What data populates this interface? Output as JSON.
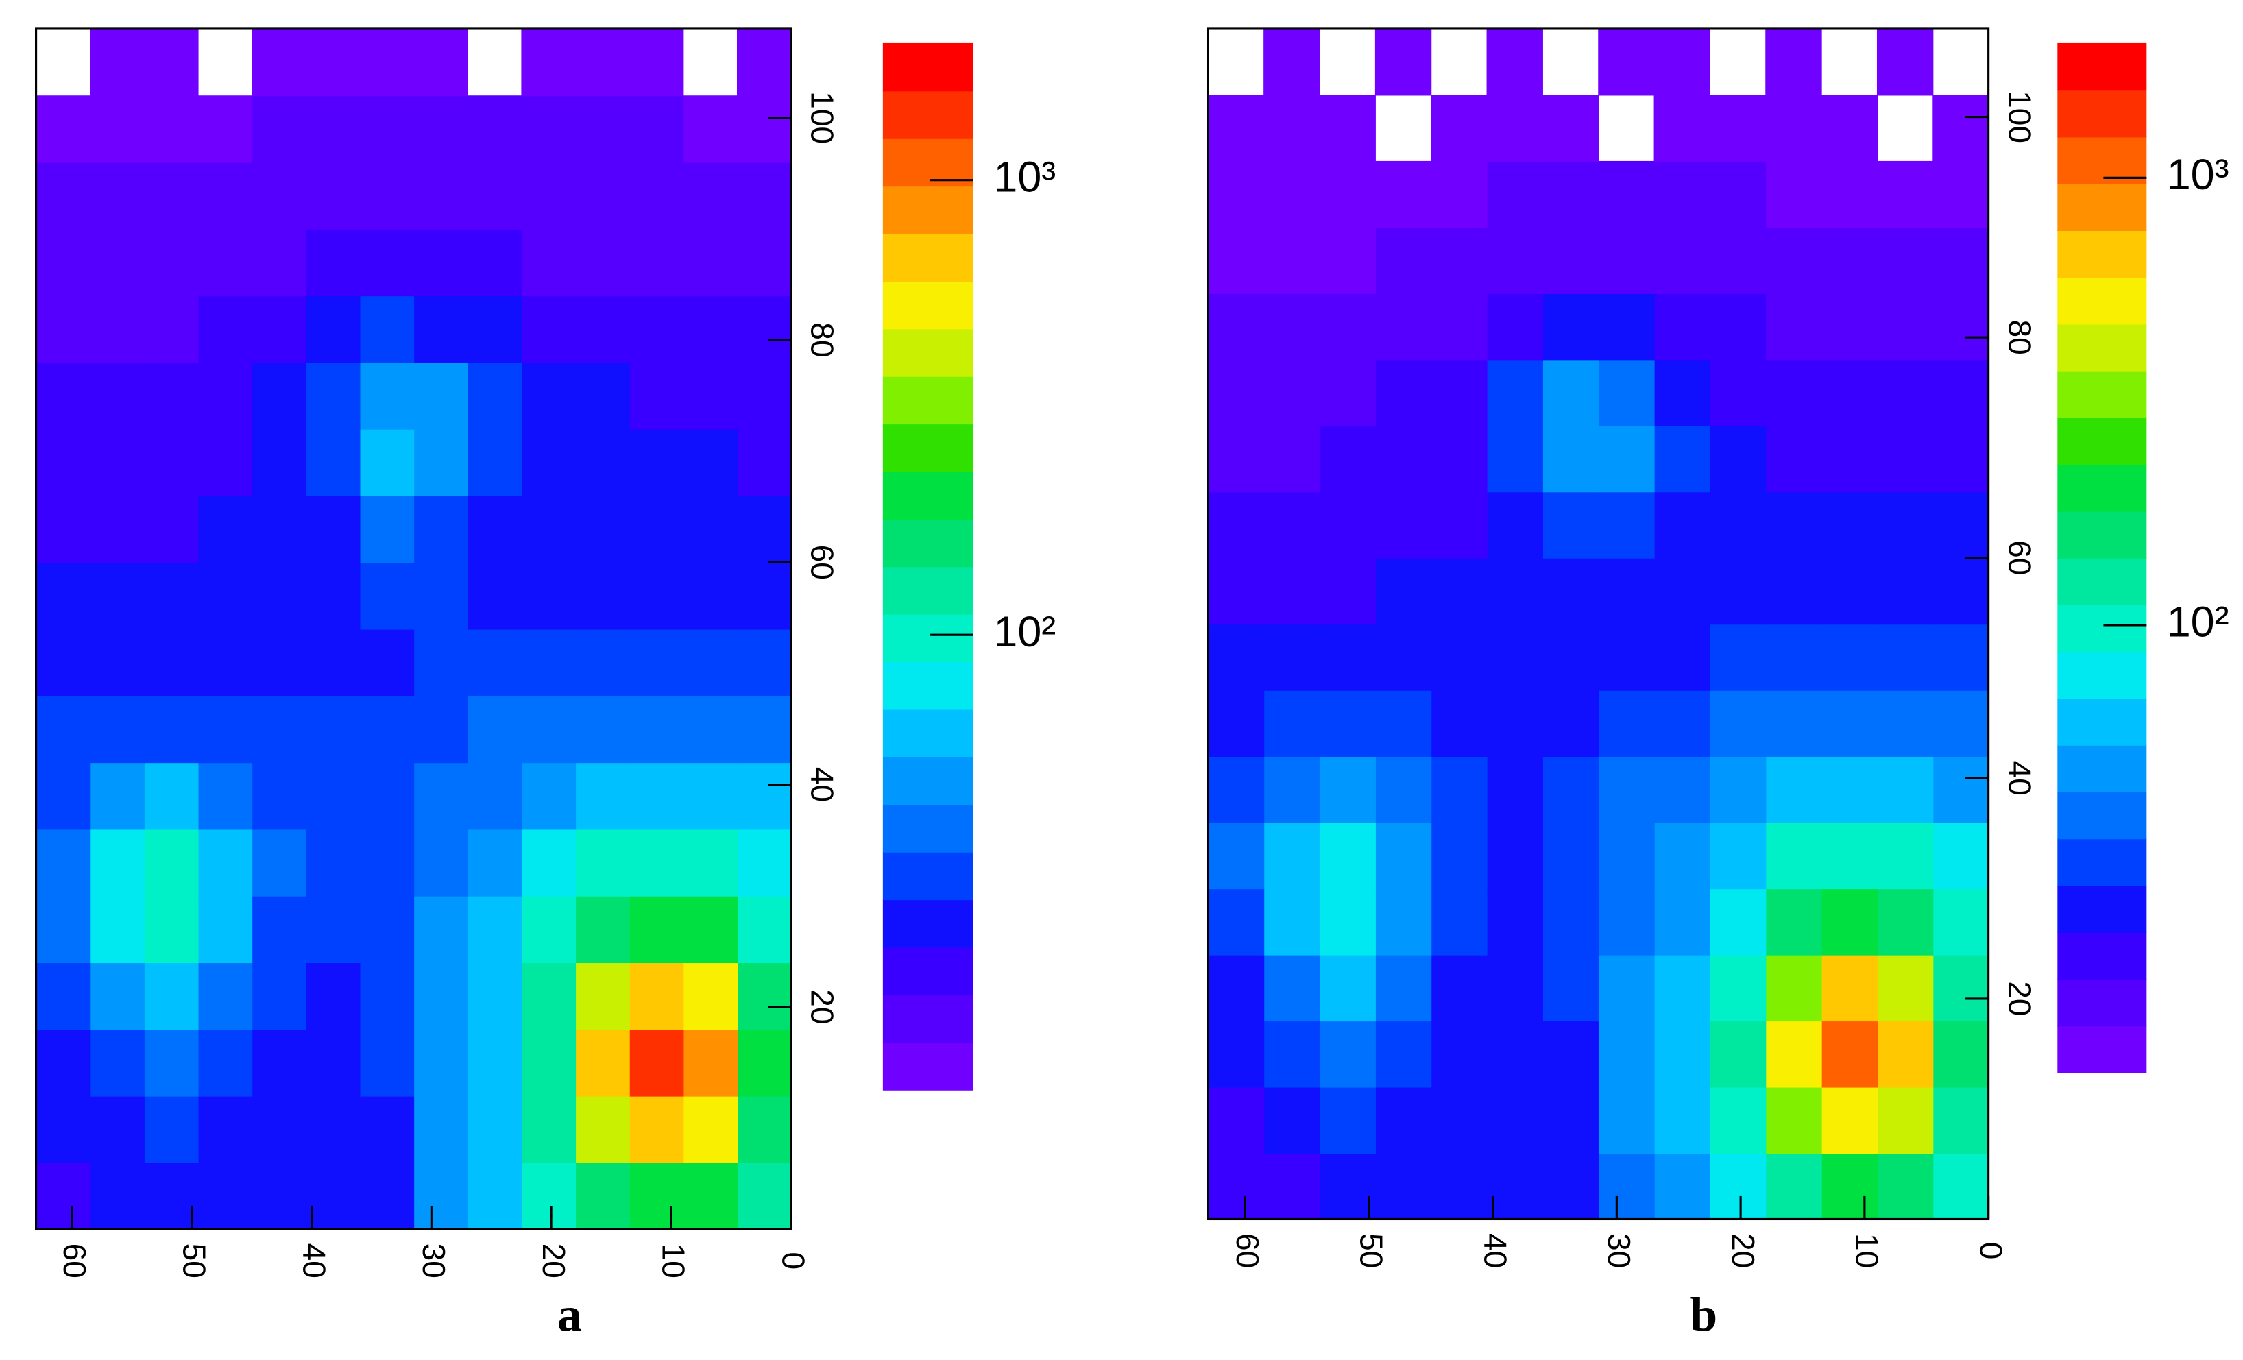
{
  "chart_data": [
    {
      "type": "heatmap",
      "label": "a",
      "x_bins": [
        0,
        4.5,
        9,
        13.5,
        18,
        22.5,
        27,
        31.5,
        36,
        40.5,
        45,
        49.5,
        54,
        58.5,
        63
      ],
      "y_bins": [
        0,
        6,
        12,
        18,
        24,
        30,
        36,
        42,
        48,
        54,
        60,
        66,
        72,
        78,
        84,
        90,
        96,
        102,
        108
      ],
      "z": [
        [
          120,
          180,
          200,
          150,
          90,
          55,
          45,
          25,
          22,
          22,
          22,
          24,
          22,
          20
        ],
        [
          170,
          500,
          700,
          380,
          120,
          60,
          48,
          26,
          24,
          24,
          26,
          30,
          26,
          22
        ],
        [
          200,
          900,
          1500,
          600,
          140,
          62,
          48,
          27,
          25,
          26,
          30,
          40,
          32,
          24
        ],
        [
          160,
          520,
          750,
          380,
          120,
          58,
          46,
          28,
          26,
          28,
          38,
          60,
          45,
          28
        ],
        [
          110,
          180,
          220,
          160,
          90,
          55,
          44,
          30,
          28,
          32,
          55,
          90,
          70,
          35
        ],
        [
          80,
          100,
          110,
          95,
          70,
          50,
          40,
          30,
          28,
          34,
          58,
          95,
          75,
          38
        ],
        [
          55,
          60,
          62,
          58,
          50,
          42,
          36,
          30,
          28,
          30,
          40,
          55,
          45,
          32
        ],
        [
          40,
          42,
          42,
          40,
          38,
          34,
          32,
          28,
          27,
          27,
          30,
          32,
          30,
          28
        ],
        [
          30,
          30,
          30,
          30,
          29,
          28,
          27,
          26,
          25,
          25,
          25,
          25,
          25,
          24
        ],
        [
          26,
          26,
          26,
          26,
          26,
          26,
          27,
          27,
          24,
          23,
          23,
          22,
          22,
          21
        ],
        [
          23,
          23,
          24,
          24,
          24,
          26,
          32,
          34,
          26,
          22,
          21,
          20,
          20,
          19
        ],
        [
          20,
          21,
          22,
          22,
          23,
          30,
          50,
          55,
          32,
          22,
          20,
          19,
          18,
          18
        ],
        [
          19,
          20,
          20,
          21,
          22,
          28,
          45,
          50,
          30,
          21,
          19,
          18,
          17,
          17
        ],
        [
          17,
          17,
          18,
          18,
          19,
          21,
          26,
          28,
          22,
          18,
          17,
          16,
          16,
          15
        ],
        [
          15,
          15,
          16,
          16,
          16,
          17,
          18,
          18,
          17,
          16,
          15,
          14,
          14,
          14
        ],
        [
          13,
          14,
          14,
          14,
          15,
          15,
          15,
          15,
          15,
          14,
          14,
          13,
          13,
          13
        ],
        [
          12,
          12,
          13,
          13,
          13,
          13,
          13,
          13,
          13,
          13,
          12,
          12,
          12,
          12
        ],
        [
          11,
          null,
          12,
          11,
          12,
          null,
          12,
          11,
          12,
          12,
          null,
          11,
          12,
          null
        ]
      ],
      "xlim": [
        63,
        0
      ],
      "xticks": [
        0,
        10,
        20,
        30,
        40,
        50,
        60
      ],
      "ylim": [
        0,
        108
      ],
      "yticks": [
        20,
        40,
        60,
        80,
        100
      ],
      "zlim": [
        10,
        2000
      ],
      "zlog": true,
      "zticks": [
        {
          "value": 100,
          "label": "10²"
        },
        {
          "value": 1000,
          "label": "10³"
        }
      ],
      "colormap": [
        "#7000ff",
        "#5500ff",
        "#3a00ff",
        "#1010ff",
        "#0040ff",
        "#0070ff",
        "#0098ff",
        "#00c0ff",
        "#00e8f0",
        "#00f0c8",
        "#00e8a0",
        "#00e070",
        "#00e040",
        "#30e000",
        "#80f000",
        "#c8f000",
        "#f8f000",
        "#ffc800",
        "#ff9000",
        "#ff6000",
        "#ff3000",
        "#ff0000"
      ]
    },
    {
      "type": "heatmap",
      "label": "b",
      "x_bins": [
        0,
        4.5,
        9,
        13.5,
        18,
        22.5,
        27,
        31.5,
        36,
        40.5,
        45,
        49.5,
        54,
        58.5,
        63
      ],
      "y_bins": [
        0,
        6,
        12,
        18,
        24,
        30,
        36,
        42,
        48,
        54,
        60,
        66,
        72,
        78,
        84,
        90,
        96,
        102,
        108
      ],
      "z": [
        [
          100,
          150,
          180,
          140,
          85,
          52,
          42,
          24,
          21,
          21,
          21,
          22,
          20,
          18
        ],
        [
          140,
          380,
          560,
          340,
          110,
          56,
          45,
          25,
          23,
          23,
          24,
          28,
          24,
          20
        ],
        [
          170,
          650,
          1100,
          520,
          130,
          58,
          45,
          26,
          24,
          25,
          28,
          36,
          30,
          22
        ],
        [
          140,
          400,
          600,
          340,
          110,
          54,
          43,
          27,
          25,
          26,
          35,
          55,
          42,
          26
        ],
        [
          100,
          160,
          200,
          150,
          85,
          52,
          42,
          28,
          26,
          30,
          50,
          80,
          62,
          32
        ],
        [
          75,
          92,
          100,
          90,
          66,
          48,
          38,
          28,
          26,
          32,
          52,
          85,
          68,
          35
        ],
        [
          50,
          55,
          58,
          54,
          47,
          40,
          34,
          28,
          26,
          28,
          37,
          50,
          42,
          30
        ],
        [
          37,
          39,
          39,
          37,
          35,
          32,
          30,
          26,
          25,
          25,
          28,
          30,
          28,
          26
        ],
        [
          28,
          28,
          28,
          28,
          27,
          26,
          25,
          24,
          23,
          23,
          23,
          23,
          23,
          22
        ],
        [
          24,
          24,
          24,
          24,
          24,
          24,
          25,
          25,
          22,
          21,
          21,
          20,
          20,
          19
        ],
        [
          21,
          21,
          22,
          22,
          22,
          24,
          29,
          31,
          24,
          20,
          19,
          18,
          18,
          17
        ],
        [
          18,
          19,
          20,
          20,
          21,
          27,
          44,
          48,
          29,
          20,
          18,
          17,
          16,
          16
        ],
        [
          17,
          18,
          18,
          19,
          20,
          25,
          40,
          44,
          27,
          19,
          17,
          16,
          15,
          15
        ],
        [
          15,
          15,
          16,
          16,
          17,
          19,
          23,
          25,
          20,
          16,
          15,
          14,
          14,
          13
        ],
        [
          13,
          13,
          14,
          14,
          14,
          15,
          16,
          16,
          15,
          14,
          13,
          12,
          12,
          12
        ],
        [
          12,
          12,
          12,
          12,
          13,
          13,
          13,
          13,
          13,
          12,
          12,
          11,
          11,
          11
        ],
        [
          11,
          null,
          11,
          11,
          11,
          11,
          null,
          11,
          11,
          11,
          null,
          11,
          11,
          11
        ],
        [
          null,
          10,
          null,
          11,
          null,
          11,
          10,
          null,
          11,
          null,
          10,
          null,
          11,
          null
        ]
      ],
      "xlim": [
        63,
        0
      ],
      "xticks": [
        0,
        10,
        20,
        30,
        40,
        50,
        60
      ],
      "ylim": [
        0,
        108
      ],
      "yticks": [
        20,
        40,
        60,
        80,
        100
      ],
      "zlim": [
        10,
        2000
      ],
      "zlog": true,
      "zticks": [
        {
          "value": 100,
          "label": "10²"
        },
        {
          "value": 1000,
          "label": "10³"
        }
      ],
      "colormap": [
        "#7000ff",
        "#5500ff",
        "#3a00ff",
        "#1010ff",
        "#0040ff",
        "#0070ff",
        "#0098ff",
        "#00c0ff",
        "#00e8f0",
        "#00f0c8",
        "#00e8a0",
        "#00e070",
        "#00e040",
        "#30e000",
        "#80f000",
        "#c8f000",
        "#f8f000",
        "#ffc800",
        "#ff9000",
        "#ff6000",
        "#ff3000",
        "#ff0000"
      ]
    }
  ]
}
